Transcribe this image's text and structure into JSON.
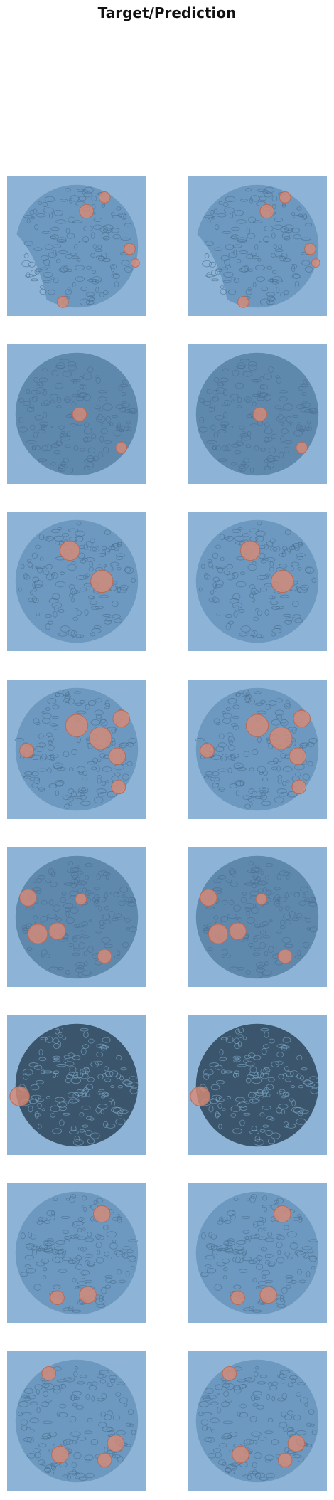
{
  "title": "Target/Prediction",
  "colors": {
    "background_blue": "#8db4d6",
    "tissue_light": "#6f9bc2",
    "tissue_dark": "#3d5a72",
    "marker_red": "#d98a74"
  },
  "grid": {
    "rows": 8,
    "columns": [
      "Target",
      "Prediction"
    ]
  },
  "samples": [
    {
      "tissue_shade": "light",
      "shape": "partial-disc"
    },
    {
      "tissue_shade": "medium",
      "shape": "disc"
    },
    {
      "tissue_shade": "light",
      "shape": "disc"
    },
    {
      "tissue_shade": "light",
      "shape": "disc"
    },
    {
      "tissue_shade": "medium",
      "shape": "disc"
    },
    {
      "tissue_shade": "dark",
      "shape": "disc"
    },
    {
      "tissue_shade": "light",
      "shape": "disc"
    },
    {
      "tissue_shade": "light",
      "shape": "disc"
    }
  ]
}
